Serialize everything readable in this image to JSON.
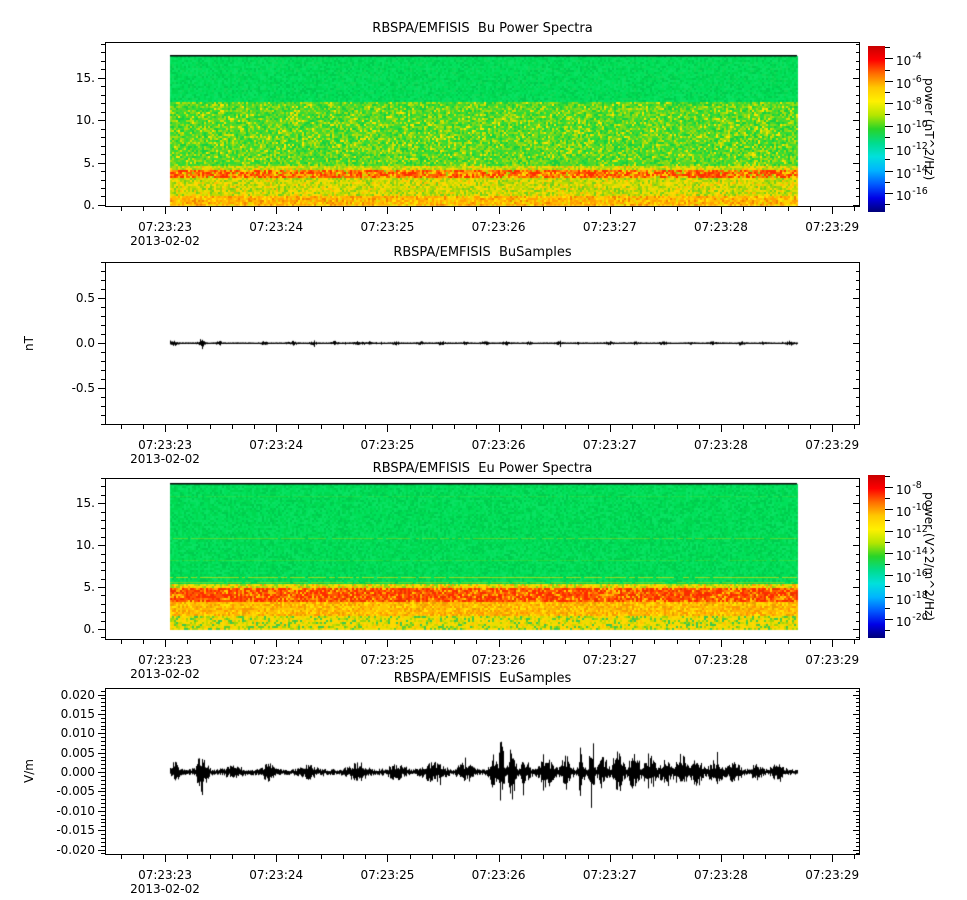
{
  "figure": {
    "background": "#ffffff",
    "accent_black": "#000000"
  },
  "date_label": "2013-02-02",
  "time_ticks": [
    "07:23:23",
    "07:23:24",
    "07:23:25",
    "07:23:26",
    "07:23:27",
    "07:23:28",
    "07:23:29"
  ],
  "chart_data": [
    {
      "id": "bu-power-spectra",
      "type": "heatmap",
      "title": "RBSPA/EMFISIS  Bu Power Spectra",
      "ylabel": "",
      "ylim": [
        -0.24,
        19.2
      ],
      "ytick_values": [
        0,
        5,
        10,
        15
      ],
      "ytick_labels": [
        "0.",
        "5.",
        "10.",
        "15."
      ],
      "y_minor_step": 1,
      "x_seconds_range": [
        22.46,
        29.25
      ],
      "x_major_seconds": [
        23,
        24,
        25,
        26,
        27,
        28,
        29
      ],
      "x_minor_step": 0.2,
      "data_frac": [
        0.0861,
        0.9166
      ],
      "data_top_value": 17.7,
      "data_bottom_value": 0,
      "seed": 101,
      "colorbar": {
        "mantissa": "10",
        "exponents": [
          "-4",
          "-6",
          "-8",
          "-10",
          "-12",
          "-14",
          "-16"
        ],
        "title": "power (nT^2/Hz)",
        "colors": [
          "#c80000",
          "#ff0000",
          "#ff6e00",
          "#ffc800",
          "#fff000",
          "#b4e600",
          "#28d428",
          "#00dc8c",
          "#00e0dc",
          "#00b4ff",
          "#005aff",
          "#0000e6",
          "#000078"
        ]
      },
      "bands": [
        {
          "hi": 17.75,
          "lo": 12.2,
          "colors": [
            "#00e05a",
            "#00d850",
            "#09e263",
            "#00cc4e",
            "#12da58"
          ],
          "weights": [
            30,
            25,
            20,
            15,
            10
          ],
          "clump": 0
        },
        {
          "hi": 12.2,
          "lo": 4.6,
          "colors": [
            "#ffe400",
            "#d6e000",
            "#a8dc0a",
            "#7eda18",
            "#50d82a",
            "#2cdc38",
            "#16d040"
          ],
          "weights": [
            2,
            6,
            12,
            18,
            24,
            22,
            16
          ],
          "clump": 0.12
        },
        {
          "hi": 4.6,
          "lo": 4.2,
          "colors": [
            "#ffd400",
            "#e0dc00",
            "#aad80e",
            "#7cd41a",
            "#ffb400"
          ],
          "weights": [
            18,
            26,
            30,
            18,
            8
          ],
          "clump": 0.2
        },
        {
          "hi": 4.2,
          "lo": 3.35,
          "colors": [
            "#ff2e00",
            "#ff5c00",
            "#ff8c00",
            "#ffb800",
            "#ffdc00",
            "#c8d800",
            "#90d012"
          ],
          "weights": [
            22,
            24,
            20,
            14,
            10,
            6,
            4
          ],
          "clump": 0.55
        },
        {
          "hi": 3.35,
          "lo": 1.1,
          "colors": [
            "#ffd800",
            "#e4dc00",
            "#c0da00",
            "#98d40e",
            "#6ed01c",
            "#ffbe00"
          ],
          "weights": [
            14,
            22,
            24,
            20,
            12,
            8
          ],
          "clump": 0.25
        },
        {
          "hi": 1.1,
          "lo": -0.05,
          "colors": [
            "#ff9e00",
            "#ffb800",
            "#ffd000",
            "#ffe600",
            "#f08000",
            "#e0dc00"
          ],
          "weights": [
            20,
            26,
            22,
            12,
            12,
            8
          ],
          "clump": 0.3
        }
      ],
      "lines": []
    },
    {
      "id": "bu-samples",
      "type": "line",
      "title": "RBSPA/EMFISIS  BuSamples",
      "ylabel": "nT",
      "ylim": [
        -0.906,
        0.9
      ],
      "ytick_values": [
        -0.5,
        0,
        0.5
      ],
      "ytick_labels": [
        "-0.5",
        "0.0",
        "0.5"
      ],
      "y_minor_step": 0.1,
      "x_seconds_range": [
        22.46,
        29.25
      ],
      "x_major_seconds": [
        23,
        24,
        25,
        26,
        27,
        28,
        29
      ],
      "x_minor_step": 0.2,
      "data_frac": [
        0.0861,
        0.9166
      ],
      "line_color": "#000000",
      "seed": 202,
      "base_amp": 0.009,
      "bursts": [
        [
          0.004,
          0.005,
          0.03
        ],
        [
          0.05,
          0.004,
          0.045
        ],
        [
          0.078,
          0.003,
          0.02
        ],
        [
          0.15,
          0.004,
          0.016
        ],
        [
          0.195,
          0.005,
          0.02
        ],
        [
          0.228,
          0.004,
          0.016
        ],
        [
          0.262,
          0.004,
          0.018
        ],
        [
          0.3,
          0.005,
          0.02
        ],
        [
          0.318,
          0.003,
          0.018
        ],
        [
          0.36,
          0.004,
          0.016
        ],
        [
          0.4,
          0.004,
          0.014
        ],
        [
          0.432,
          0.004,
          0.018
        ],
        [
          0.47,
          0.003,
          0.013
        ],
        [
          0.502,
          0.004,
          0.018
        ],
        [
          0.536,
          0.004,
          0.02
        ],
        [
          0.572,
          0.003,
          0.013
        ],
        [
          0.62,
          0.004,
          0.016
        ],
        [
          0.652,
          0.003,
          0.012
        ],
        [
          0.7,
          0.004,
          0.016
        ],
        [
          0.742,
          0.003,
          0.014
        ],
        [
          0.786,
          0.004,
          0.018
        ],
        [
          0.83,
          0.003,
          0.013
        ],
        [
          0.866,
          0.004,
          0.016
        ],
        [
          0.91,
          0.004,
          0.018
        ],
        [
          0.946,
          0.003,
          0.014
        ],
        [
          0.988,
          0.004,
          0.022
        ]
      ]
    },
    {
      "id": "eu-power-spectra",
      "type": "heatmap",
      "title": "RBSPA/EMFISIS  Eu Power Spectra",
      "ylabel": "",
      "ylim": [
        -1.31,
        18.0
      ],
      "ytick_values": [
        0,
        5,
        10,
        15
      ],
      "ytick_labels": [
        "0.",
        "5.",
        "10.",
        "15."
      ],
      "y_minor_step": 1,
      "x_seconds_range": [
        22.46,
        29.25
      ],
      "x_major_seconds": [
        23,
        24,
        25,
        26,
        27,
        28,
        29
      ],
      "x_minor_step": 0.2,
      "data_frac": [
        0.0861,
        0.9166
      ],
      "data_top_value": 17.4,
      "data_bottom_value": 0,
      "seed": 303,
      "colorbar": {
        "mantissa": "10",
        "exponents": [
          "-8",
          "-10",
          "-12",
          "-14",
          "-16",
          "-18",
          "-20"
        ],
        "title": "power (V^2/m^2/Hz)",
        "colors": [
          "#c80000",
          "#ff0000",
          "#ff6e00",
          "#ffc800",
          "#fff000",
          "#b4e600",
          "#28d428",
          "#00dc8c",
          "#00e0dc",
          "#00b4ff",
          "#005aff",
          "#0000e6",
          "#000078"
        ]
      },
      "bands": [
        {
          "hi": 17.45,
          "lo": 5.4,
          "colors": [
            "#00e05a",
            "#00d850",
            "#09e263",
            "#00cc4e"
          ],
          "weights": [
            30,
            28,
            22,
            20
          ],
          "clump": 0
        },
        {
          "hi": 5.4,
          "lo": 4.95,
          "colors": [
            "#ffd800",
            "#e2dc00",
            "#b0d80a",
            "#ff9c00",
            "#84d416"
          ],
          "weights": [
            24,
            24,
            18,
            16,
            18
          ],
          "clump": 0.3
        },
        {
          "hi": 4.95,
          "lo": 3.4,
          "colors": [
            "#ff2a00",
            "#ff5600",
            "#ff8200",
            "#ffae00",
            "#e83400",
            "#ffd200"
          ],
          "weights": [
            24,
            24,
            18,
            14,
            12,
            8
          ],
          "clump": 0.6
        },
        {
          "hi": 3.4,
          "lo": 1.6,
          "colors": [
            "#ffb000",
            "#ffc600",
            "#ff9400",
            "#ffdc00",
            "#ea9e00",
            "#ffe800"
          ],
          "weights": [
            22,
            24,
            18,
            16,
            12,
            8
          ],
          "clump": 0.35
        },
        {
          "hi": 1.6,
          "lo": -0.05,
          "colors": [
            "#ffd800",
            "#ecdc00",
            "#c8d800",
            "#ffc600",
            "#5ecc30",
            "#3cc84e",
            "#a0d40a"
          ],
          "weights": [
            22,
            18,
            14,
            12,
            12,
            10,
            12
          ],
          "clump": 0.4
        }
      ],
      "lines": [
        {
          "v": 15.9,
          "color": "#c8dc00",
          "alpha": 0.15
        },
        {
          "v": 10.85,
          "color": "#c8dc00",
          "alpha": 0.4
        },
        {
          "v": 8.2,
          "color": "#b0dc00",
          "alpha": 0.22
        },
        {
          "v": 6.2,
          "color": "#ffd800",
          "alpha": 0.6
        },
        {
          "v": 5.62,
          "color": "#e0d800",
          "alpha": 0.45
        }
      ]
    },
    {
      "id": "eu-samples",
      "type": "line",
      "title": "RBSPA/EMFISIS  EuSamples",
      "ylabel": "V/m",
      "ylim": [
        -0.0214,
        0.0217
      ],
      "ytick_values": [
        0.02,
        0.015,
        0.01,
        0.005,
        0,
        -0.005,
        -0.01,
        -0.015,
        -0.02
      ],
      "ytick_labels": [
        "0.020",
        "0.015",
        "0.010",
        "0.005",
        "0.000",
        "-0.005",
        "-0.010",
        "-0.015",
        "-0.020"
      ],
      "y_minor_step": 0.001,
      "x_seconds_range": [
        22.46,
        29.25
      ],
      "x_major_seconds": [
        23,
        24,
        25,
        26,
        27,
        28,
        29
      ],
      "x_minor_step": 0.2,
      "data_frac": [
        0.0861,
        0.9166
      ],
      "line_color": "#000000",
      "seed": 404,
      "base_amp": 0.0008,
      "bursts": [
        [
          0.008,
          0.004,
          0.0025
        ],
        [
          0.05,
          0.006,
          0.0045
        ],
        [
          0.1,
          0.01,
          0.001
        ],
        [
          0.155,
          0.008,
          0.0018
        ],
        [
          0.22,
          0.01,
          0.0012
        ],
        [
          0.3,
          0.012,
          0.0018
        ],
        [
          0.36,
          0.01,
          0.0015
        ],
        [
          0.42,
          0.012,
          0.0022
        ],
        [
          0.47,
          0.008,
          0.0025
        ],
        [
          0.515,
          0.004,
          0.004
        ],
        [
          0.528,
          0.003,
          0.008
        ],
        [
          0.545,
          0.004,
          0.0065
        ],
        [
          0.565,
          0.006,
          0.003
        ],
        [
          0.6,
          0.008,
          0.0035
        ],
        [
          0.63,
          0.005,
          0.004
        ],
        [
          0.655,
          0.003,
          0.006
        ],
        [
          0.672,
          0.0025,
          0.0115
        ],
        [
          0.69,
          0.005,
          0.0045
        ],
        [
          0.715,
          0.006,
          0.005
        ],
        [
          0.74,
          0.007,
          0.004
        ],
        [
          0.765,
          0.006,
          0.0045
        ],
        [
          0.79,
          0.006,
          0.0038
        ],
        [
          0.815,
          0.007,
          0.004
        ],
        [
          0.84,
          0.006,
          0.0032
        ],
        [
          0.87,
          0.008,
          0.0028
        ],
        [
          0.9,
          0.008,
          0.002
        ],
        [
          0.935,
          0.006,
          0.0015
        ],
        [
          0.97,
          0.006,
          0.0022
        ]
      ]
    }
  ]
}
